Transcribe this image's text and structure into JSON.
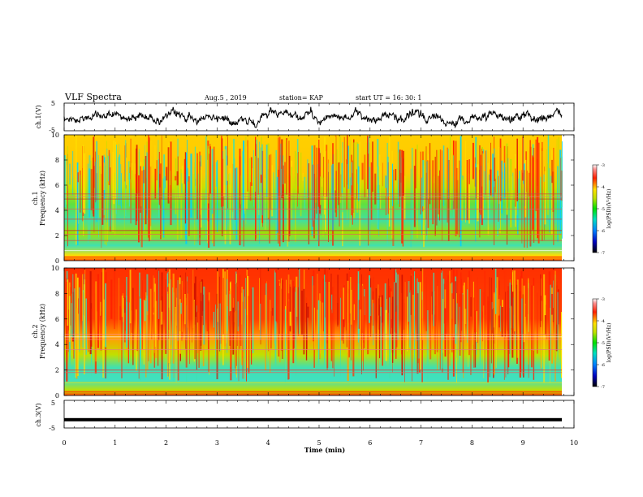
{
  "header": {
    "title": "VLF Spectra",
    "date": "Aug.5  , 2019",
    "station": "station= KAP",
    "start": "start  UT =   16: 30: 1"
  },
  "chart_data": [
    {
      "type": "line",
      "panel": "ch1-waveform",
      "ylabel": "ch.1(V)",
      "yticks": [
        "5",
        "-5"
      ],
      "ylim": [
        -5,
        5
      ],
      "xlim": [
        0,
        10
      ]
    },
    {
      "type": "heatmap",
      "panel": "ch1-spectrogram",
      "ylabel": "ch.1\nFrequency  (kHz)",
      "ylabel_line1": "ch.1",
      "ylabel_line2": "Frequency  (kHz)",
      "yticks": [
        "0",
        "2",
        "4",
        "6",
        "8",
        "10"
      ],
      "ylim": [
        0,
        10
      ],
      "xlim": [
        0,
        10
      ],
      "colorbar": {
        "ticks": [
          "-3",
          "-4",
          "-5",
          "-6",
          "-7"
        ],
        "range": [
          -7,
          -3
        ],
        "label": "log(PSD)(V²/Hz)"
      }
    },
    {
      "type": "heatmap",
      "panel": "ch2-spectrogram",
      "ylabel_line1": "ch.2",
      "ylabel_line2": "Frequency  (kHz)",
      "yticks": [
        "0",
        "2",
        "4",
        "6",
        "8",
        "10"
      ],
      "ylim": [
        0,
        10
      ],
      "xlim": [
        0,
        10
      ],
      "colorbar": {
        "ticks": [
          "-3",
          "-4",
          "-5",
          "-6",
          "-7"
        ],
        "range": [
          -7,
          -3
        ],
        "label": "log(PSD)(V²/Hz)"
      }
    },
    {
      "type": "line",
      "panel": "ch3-waveform",
      "ylabel": "ch.3(V)",
      "yticks": [
        "5",
        "-5"
      ],
      "ylim": [
        -5,
        5
      ],
      "xlim": [
        0,
        10
      ],
      "constant_value": -2
    }
  ],
  "xaxis": {
    "label": "Time  (min)",
    "ticks": [
      "0",
      "1",
      "2",
      "3",
      "4",
      "5",
      "6",
      "7",
      "8",
      "9",
      "10"
    ]
  },
  "colors": {
    "low": "#000080",
    "mid": "#00e000",
    "high": "#ff2000"
  }
}
